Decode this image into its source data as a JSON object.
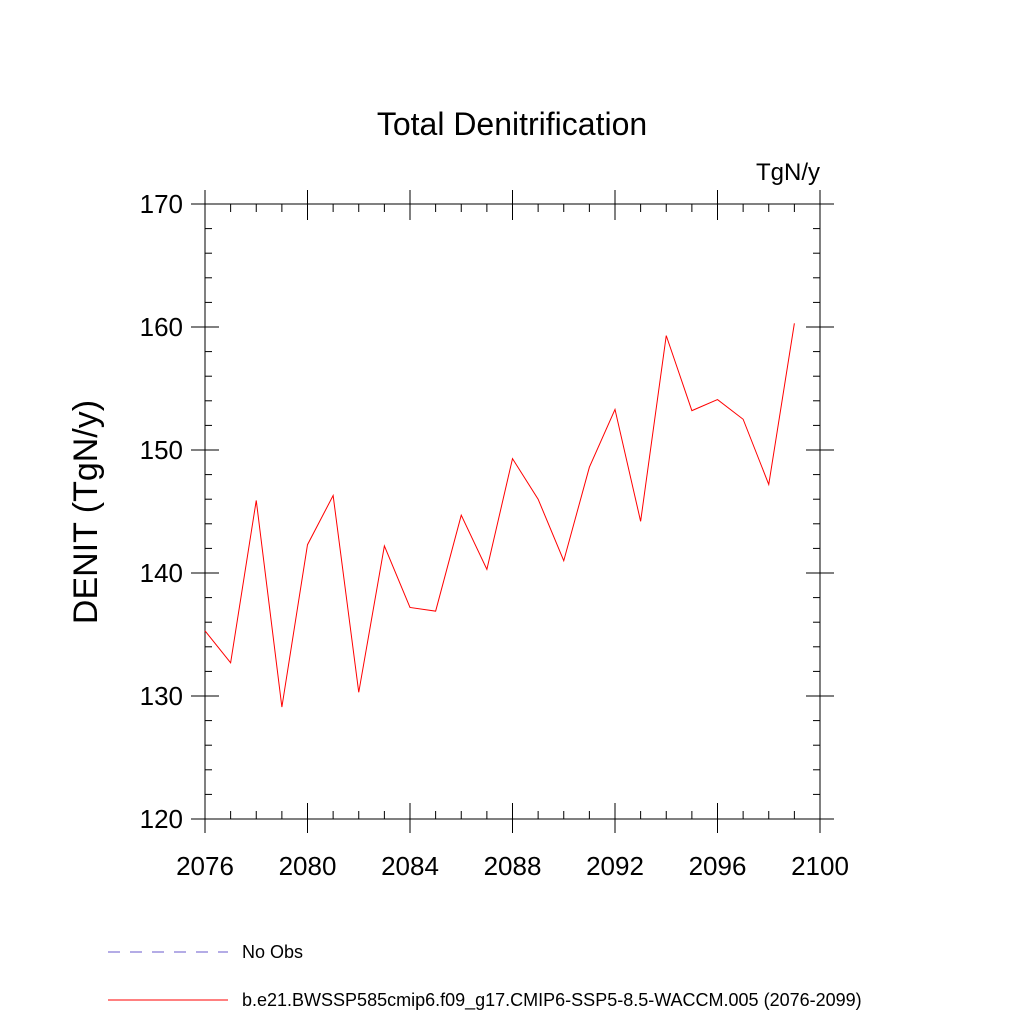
{
  "chart_data": {
    "type": "line",
    "title": "Total Denitrification",
    "unit_label": "TgN/y",
    "ylabel": "DENIT  (TgN/y)",
    "xlabel": "",
    "xlim": [
      2076,
      2100
    ],
    "ylim": [
      120,
      170
    ],
    "x_ticks": [
      2076,
      2080,
      2084,
      2088,
      2092,
      2096,
      2100
    ],
    "y_ticks": [
      120,
      130,
      140,
      150,
      160,
      170
    ],
    "grid": false,
    "series": [
      {
        "name": "b.e21.BWSSP585cmip6.f09_g17.CMIP6-SSP5-8.5-WACCM.005 (2076-2099)",
        "color": "#ff0000",
        "style": "solid",
        "x": [
          2076,
          2077,
          2078,
          2079,
          2080,
          2081,
          2082,
          2083,
          2084,
          2085,
          2086,
          2087,
          2088,
          2089,
          2090,
          2091,
          2092,
          2093,
          2094,
          2095,
          2096,
          2097,
          2098,
          2099
        ],
        "values": [
          135.3,
          132.7,
          145.9,
          129.1,
          142.3,
          146.3,
          130.3,
          142.2,
          137.2,
          136.9,
          144.7,
          140.3,
          149.3,
          146.0,
          141.0,
          148.6,
          153.3,
          144.2,
          159.3,
          153.2,
          154.1,
          152.5,
          147.2,
          160.3
        ]
      }
    ],
    "legend": {
      "placement": "bottom-left",
      "entries": [
        {
          "label": "No Obs",
          "color": "#6a5acd",
          "style": "dashed"
        },
        {
          "label": "b.e21.BWSSP585cmip6.f09_g17.CMIP6-SSP5-8.5-WACCM.005 (2076-2099)",
          "color": "#ff0000",
          "style": "solid"
        }
      ]
    }
  }
}
